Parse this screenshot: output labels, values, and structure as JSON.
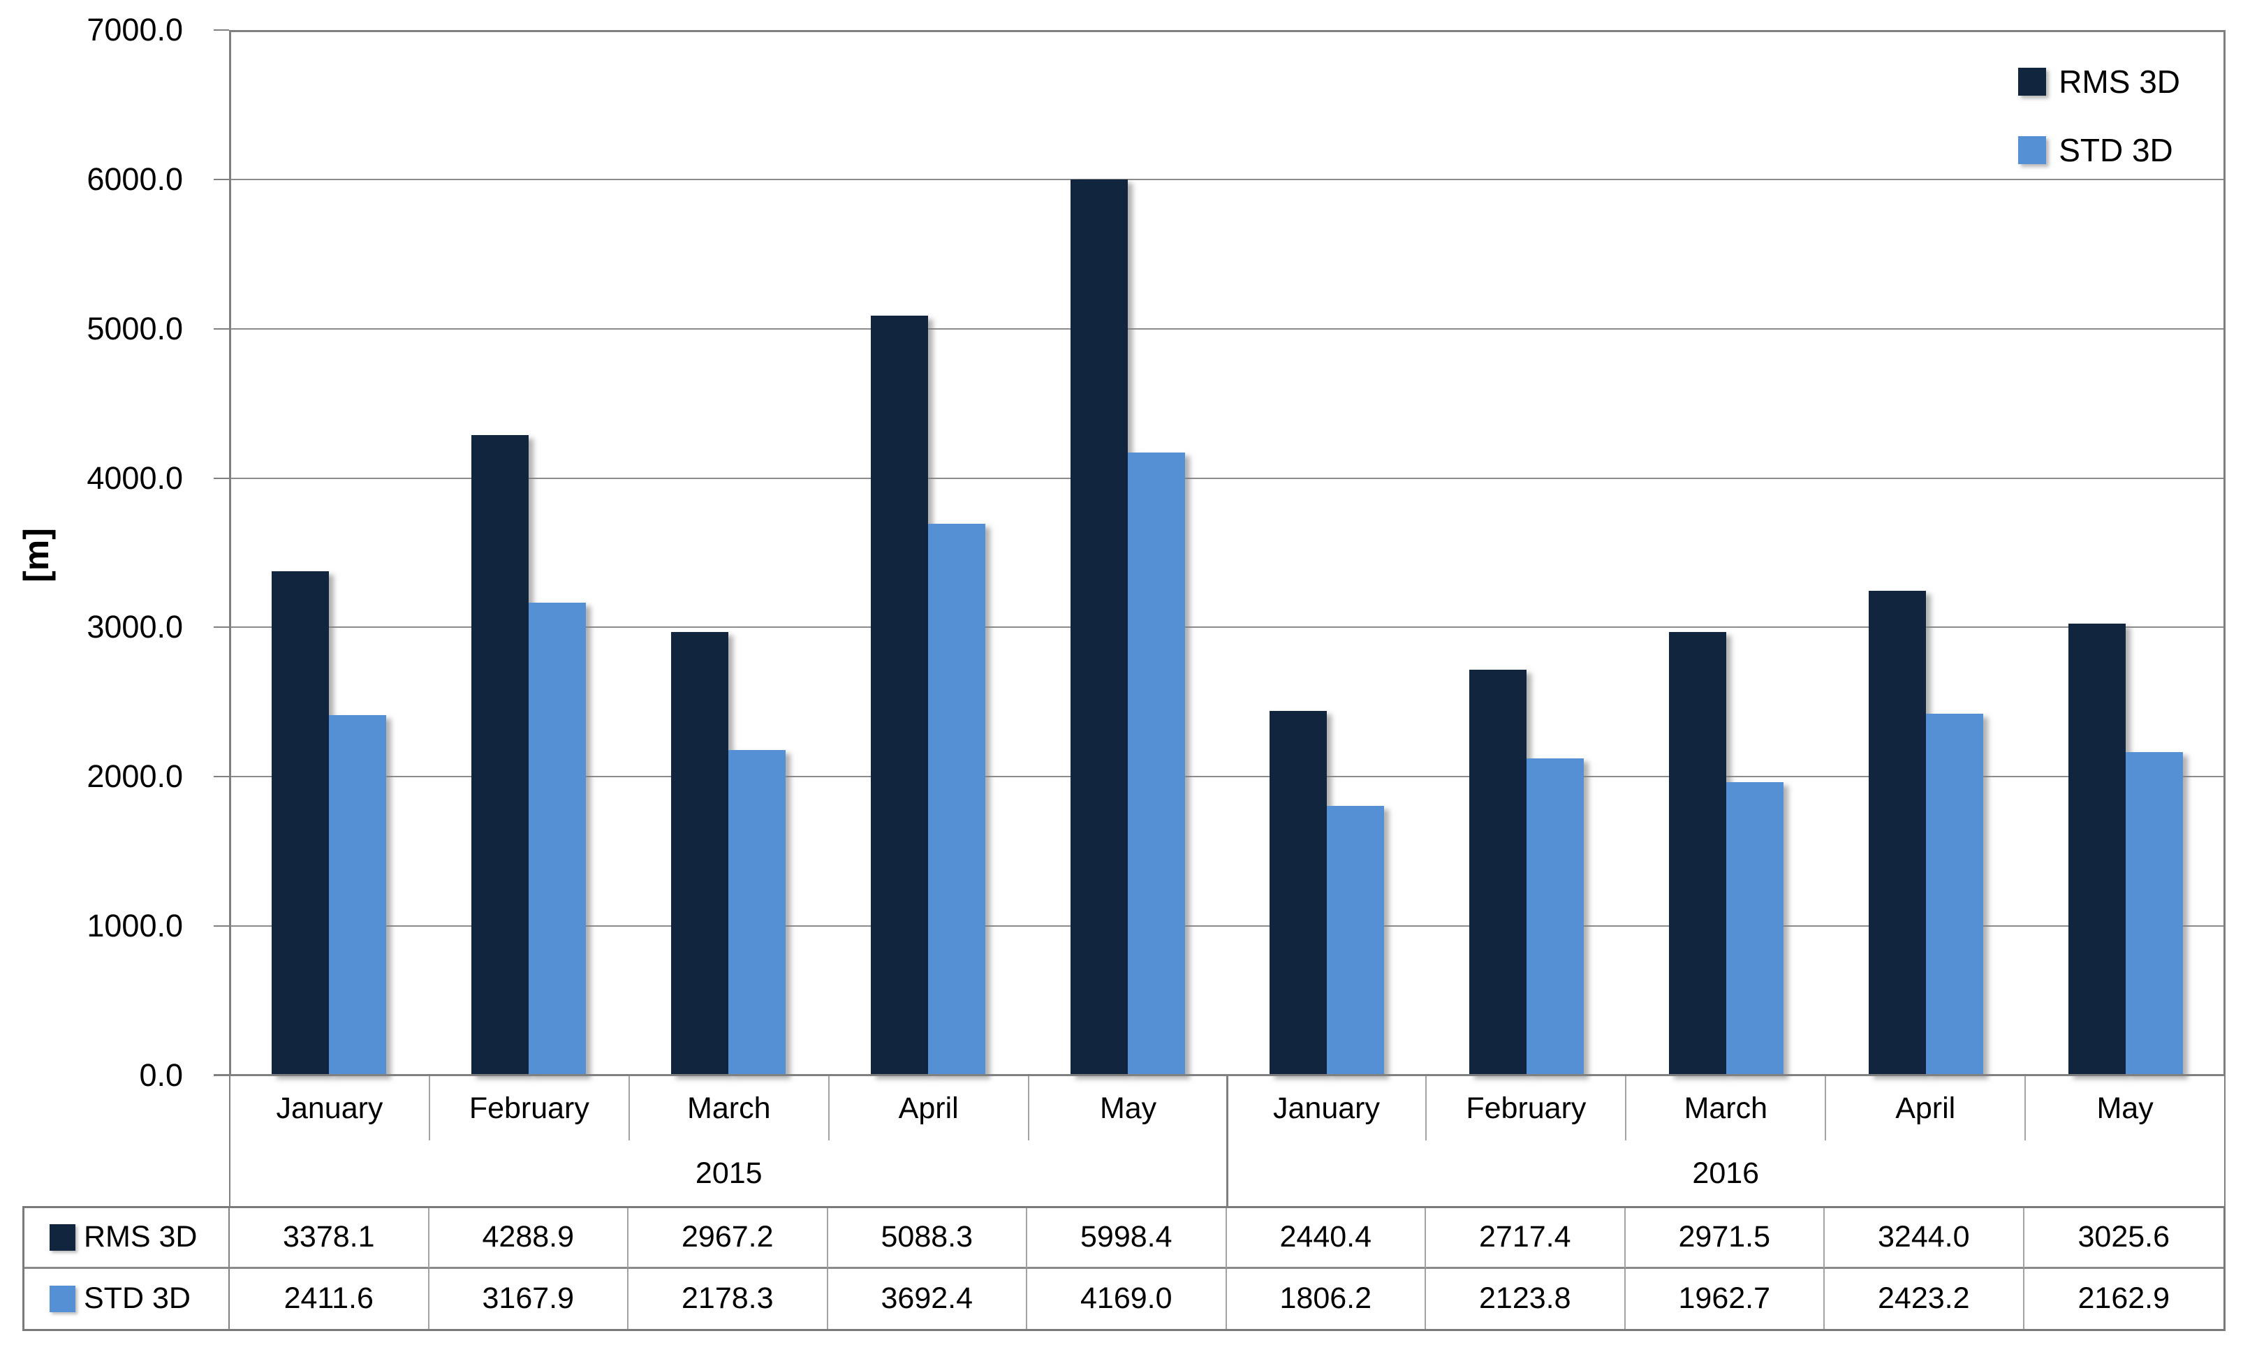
{
  "chart_data": {
    "type": "bar",
    "title": "",
    "xlabel": "",
    "ylabel": "[m]",
    "ylim": [
      0,
      7000
    ],
    "ytick_step": 1000,
    "ytick_labels": [
      "7000.0",
      "6000.0",
      "5000.0",
      "4000.0",
      "3000.0",
      "2000.0",
      "1000.0",
      "0.0"
    ],
    "grid": true,
    "legend_position": "top-right",
    "value_format_decimals": 1,
    "categories": [
      "January",
      "February",
      "March",
      "April",
      "May",
      "January",
      "February",
      "March",
      "April",
      "May"
    ],
    "category_groups": [
      {
        "label": "2015",
        "span": 5
      },
      {
        "label": "2016",
        "span": 5
      }
    ],
    "series": [
      {
        "name": "RMS 3D",
        "color": "#12253F",
        "values": [
          3378.1,
          4288.9,
          2967.2,
          5088.3,
          5998.4,
          2440.4,
          2717.4,
          2971.5,
          3244.0,
          3025.6
        ]
      },
      {
        "name": "STD 3D",
        "color": "#5590D5",
        "values": [
          2411.6,
          3167.9,
          2178.3,
          3692.4,
          4169.0,
          1806.2,
          2123.8,
          1962.7,
          2423.2,
          2162.9
        ]
      }
    ],
    "has_data_table": true
  },
  "colors": {
    "rms_3d": "#12253F",
    "std_3d": "#5590D5",
    "gridline": "#8C8C8C",
    "axis": "#808080"
  }
}
